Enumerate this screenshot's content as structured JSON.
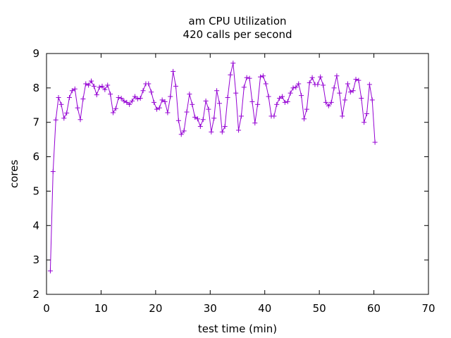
{
  "chart_data": {
    "type": "line",
    "title": "am CPU Utilization",
    "subtitle": "420 calls per second",
    "xlabel": "test time (min)",
    "ylabel": "cores",
    "xlim": [
      0,
      70
    ],
    "ylim": [
      2,
      9
    ],
    "xticks": [
      "0",
      "10",
      "20",
      "30",
      "40",
      "50",
      "60",
      "70"
    ],
    "yticks": [
      "2",
      "3",
      "4",
      "5",
      "6",
      "7",
      "8",
      "9"
    ],
    "grid": false,
    "legend": "none",
    "series": [
      {
        "color": "#9400d3",
        "marker": "plus",
        "points": [
          [
            0.7,
            2.68
          ],
          [
            1.2,
            5.57
          ],
          [
            1.7,
            7.07
          ],
          [
            2.2,
            7.72
          ],
          [
            2.7,
            7.52
          ],
          [
            3.2,
            7.12
          ],
          [
            3.7,
            7.27
          ],
          [
            4.2,
            7.72
          ],
          [
            4.7,
            7.92
          ],
          [
            5.2,
            7.97
          ],
          [
            5.7,
            7.42
          ],
          [
            6.2,
            7.08
          ],
          [
            6.7,
            7.68
          ],
          [
            7.2,
            8.12
          ],
          [
            7.7,
            8.08
          ],
          [
            8.2,
            8.2
          ],
          [
            8.7,
            8.05
          ],
          [
            9.2,
            7.8
          ],
          [
            9.7,
            8.02
          ],
          [
            10.2,
            8.05
          ],
          [
            10.7,
            7.95
          ],
          [
            11.2,
            8.08
          ],
          [
            11.7,
            7.82
          ],
          [
            12.2,
            7.28
          ],
          [
            12.7,
            7.4
          ],
          [
            13.2,
            7.72
          ],
          [
            13.7,
            7.7
          ],
          [
            14.2,
            7.62
          ],
          [
            14.7,
            7.58
          ],
          [
            15.2,
            7.52
          ],
          [
            15.7,
            7.62
          ],
          [
            16.2,
            7.75
          ],
          [
            16.7,
            7.68
          ],
          [
            17.2,
            7.7
          ],
          [
            17.7,
            7.92
          ],
          [
            18.2,
            8.12
          ],
          [
            18.7,
            8.12
          ],
          [
            19.2,
            7.88
          ],
          [
            19.7,
            7.58
          ],
          [
            20.2,
            7.38
          ],
          [
            20.7,
            7.42
          ],
          [
            21.2,
            7.65
          ],
          [
            21.7,
            7.6
          ],
          [
            22.2,
            7.28
          ],
          [
            22.7,
            7.75
          ],
          [
            23.2,
            8.48
          ],
          [
            23.7,
            8.05
          ],
          [
            24.2,
            7.05
          ],
          [
            24.7,
            6.65
          ],
          [
            25.2,
            6.75
          ],
          [
            25.7,
            7.3
          ],
          [
            26.2,
            7.82
          ],
          [
            26.7,
            7.52
          ],
          [
            27.2,
            7.15
          ],
          [
            27.7,
            7.1
          ],
          [
            28.2,
            6.88
          ],
          [
            28.7,
            7.08
          ],
          [
            29.2,
            7.62
          ],
          [
            29.7,
            7.38
          ],
          [
            30.2,
            6.72
          ],
          [
            30.7,
            7.12
          ],
          [
            31.2,
            7.92
          ],
          [
            31.7,
            7.55
          ],
          [
            32.2,
            6.72
          ],
          [
            32.7,
            6.88
          ],
          [
            33.2,
            7.72
          ],
          [
            33.7,
            8.38
          ],
          [
            34.2,
            8.72
          ],
          [
            34.7,
            7.85
          ],
          [
            35.2,
            6.77
          ],
          [
            35.7,
            7.18
          ],
          [
            36.2,
            8.02
          ],
          [
            36.7,
            8.3
          ],
          [
            37.2,
            8.28
          ],
          [
            37.7,
            7.6
          ],
          [
            38.2,
            6.98
          ],
          [
            38.7,
            7.52
          ],
          [
            39.2,
            8.32
          ],
          [
            39.7,
            8.35
          ],
          [
            40.2,
            8.12
          ],
          [
            40.7,
            7.75
          ],
          [
            41.2,
            7.18
          ],
          [
            41.7,
            7.18
          ],
          [
            42.2,
            7.52
          ],
          [
            42.7,
            7.7
          ],
          [
            43.2,
            7.75
          ],
          [
            43.7,
            7.58
          ],
          [
            44.2,
            7.6
          ],
          [
            44.7,
            7.85
          ],
          [
            45.2,
            8.0
          ],
          [
            45.7,
            8.02
          ],
          [
            46.2,
            8.12
          ],
          [
            46.7,
            7.78
          ],
          [
            47.2,
            7.1
          ],
          [
            47.7,
            7.38
          ],
          [
            48.2,
            8.15
          ],
          [
            48.7,
            8.3
          ],
          [
            49.2,
            8.1
          ],
          [
            49.7,
            8.1
          ],
          [
            50.2,
            8.32
          ],
          [
            50.7,
            8.08
          ],
          [
            51.2,
            7.58
          ],
          [
            51.7,
            7.48
          ],
          [
            52.2,
            7.58
          ],
          [
            52.7,
            8.0
          ],
          [
            53.2,
            8.35
          ],
          [
            53.7,
            7.85
          ],
          [
            54.2,
            7.18
          ],
          [
            54.7,
            7.65
          ],
          [
            55.2,
            8.12
          ],
          [
            55.7,
            7.88
          ],
          [
            56.2,
            7.92
          ],
          [
            56.7,
            8.25
          ],
          [
            57.2,
            8.22
          ],
          [
            57.7,
            7.7
          ],
          [
            58.2,
            7.0
          ],
          [
            58.7,
            7.25
          ],
          [
            59.2,
            8.1
          ],
          [
            59.7,
            7.65
          ],
          [
            60.2,
            6.42
          ]
        ]
      }
    ]
  }
}
